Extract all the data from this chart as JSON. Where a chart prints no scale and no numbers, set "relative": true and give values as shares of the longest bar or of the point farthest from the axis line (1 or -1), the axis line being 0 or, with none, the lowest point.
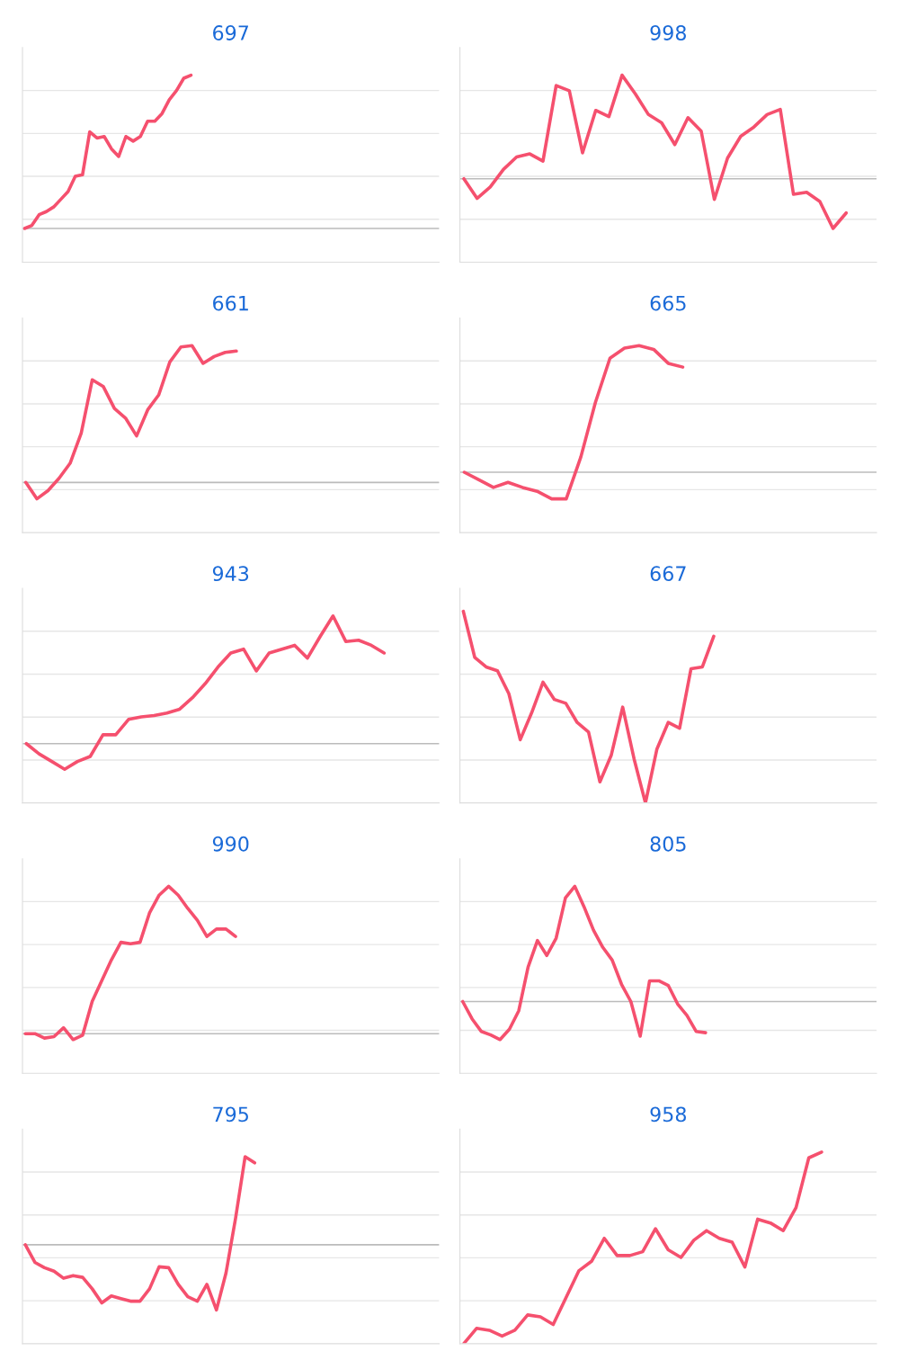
{
  "chart_data": [
    {
      "type": "line",
      "title": "697",
      "relative": true,
      "grid": "y",
      "tick_labels": false,
      "ref_lines": [
        {
          "axis": "y",
          "value": 0,
          "color": "#bbbbbb"
        }
      ],
      "categories": [
        null,
        null,
        null,
        null,
        null,
        null,
        null,
        null,
        null,
        null,
        null,
        null,
        null,
        null,
        null,
        null,
        null,
        null,
        null,
        null,
        null,
        null,
        null,
        null,
        null,
        null,
        null,
        null,
        null,
        null,
        null,
        null,
        null,
        null,
        null,
        null,
        null,
        null,
        null,
        null,
        null,
        null,
        null,
        null,
        null,
        null,
        null,
        null,
        null,
        null,
        null,
        null,
        null,
        null,
        null,
        null,
        null,
        null
      ],
      "series": [
        {
          "color": "#f5506e",
          "values": [
            0,
            0.02,
            0.09,
            0.11,
            0.14,
            0.19,
            0.24,
            0.34,
            0.35,
            0.63,
            0.59,
            0.6,
            0.52,
            0.47,
            0.6,
            0.57,
            0.6,
            0.7,
            0.7,
            0.75,
            0.84,
            0.9,
            0.98,
            1,
            null,
            null,
            null,
            null,
            null,
            null,
            null,
            null,
            null,
            null,
            null,
            null,
            null,
            null,
            null,
            null,
            null,
            null,
            null,
            null,
            null,
            null,
            null,
            null,
            null,
            null,
            null,
            null,
            null,
            null,
            null,
            null,
            null,
            null
          ]
        }
      ]
    },
    {
      "type": "line",
      "title": "998",
      "relative": true,
      "grid": "y",
      "tick_labels": false,
      "ref_lines": [
        {
          "axis": "y",
          "value": 0,
          "color": "#bbbbbb"
        }
      ],
      "categories": [
        null,
        null,
        null,
        null,
        null,
        null,
        null,
        null,
        null,
        null,
        null,
        null,
        null,
        null,
        null,
        null,
        null,
        null,
        null,
        null,
        null,
        null,
        null,
        null,
        null,
        null,
        null,
        null,
        null,
        null,
        null,
        null
      ],
      "series": [
        {
          "color": "#f5506e",
          "values": [
            0,
            -0.19,
            -0.08,
            0.09,
            0.21,
            0.24,
            0.17,
            0.9,
            0.85,
            0.25,
            0.66,
            0.6,
            1,
            0.82,
            0.62,
            0.54,
            0.33,
            0.59,
            0.46,
            -0.2,
            0.2,
            0.41,
            0.5,
            0.62,
            0.67,
            -0.15,
            -0.13,
            -0.22,
            -0.48,
            -0.33,
            null,
            null
          ]
        }
      ]
    },
    {
      "type": "line",
      "title": "661",
      "relative": true,
      "grid": "y",
      "tick_labels": false,
      "ref_lines": [
        {
          "axis": "y",
          "value": 0,
          "color": "#bbbbbb"
        }
      ],
      "categories": [
        null,
        null,
        null,
        null,
        null,
        null,
        null,
        null,
        null,
        null,
        null,
        null,
        null,
        null,
        null,
        null,
        null,
        null,
        null,
        null,
        null,
        null,
        null,
        null,
        null,
        null,
        null,
        null,
        null,
        null,
        null,
        null,
        null,
        null,
        null,
        null,
        null,
        null
      ],
      "series": [
        {
          "color": "#f5506e",
          "values": [
            0,
            -0.12,
            -0.06,
            0.03,
            0.14,
            0.36,
            0.75,
            0.7,
            0.54,
            0.47,
            0.34,
            0.53,
            0.64,
            0.88,
            0.99,
            1,
            0.87,
            0.92,
            0.95,
            0.96,
            null,
            null,
            null,
            null,
            null,
            null,
            null,
            null,
            null,
            null,
            null,
            null,
            null,
            null,
            null,
            null,
            null,
            null
          ]
        }
      ]
    },
    {
      "type": "line",
      "title": "665",
      "relative": true,
      "grid": "y",
      "tick_labels": false,
      "ref_lines": [
        {
          "axis": "y",
          "value": 0,
          "color": "#bbbbbb"
        }
      ],
      "categories": [
        null,
        null,
        null,
        null,
        null,
        null,
        null,
        null,
        null,
        null,
        null,
        null,
        null,
        null,
        null,
        null,
        null,
        null,
        null,
        null,
        null,
        null,
        null,
        null,
        null,
        null,
        null,
        null,
        null
      ],
      "series": [
        {
          "color": "#f5506e",
          "values": [
            0,
            -0.06,
            -0.12,
            -0.08,
            -0.12,
            -0.15,
            -0.21,
            -0.21,
            0.12,
            0.55,
            0.9,
            0.98,
            1,
            0.97,
            0.86,
            0.83,
            null,
            null,
            null,
            null,
            null,
            null,
            null,
            null,
            null,
            null,
            null,
            null,
            null
          ]
        }
      ]
    },
    {
      "type": "line",
      "title": "943",
      "relative": true,
      "grid": "y",
      "tick_labels": false,
      "ref_lines": [
        {
          "axis": "y",
          "value": 0,
          "color": "#bbbbbb"
        }
      ],
      "categories": [
        null,
        null,
        null,
        null,
        null,
        null,
        null,
        null,
        null,
        null,
        null,
        null,
        null,
        null,
        null,
        null,
        null,
        null,
        null,
        null,
        null,
        null,
        null,
        null,
        null,
        null,
        null,
        null,
        null,
        null,
        null,
        null,
        null
      ],
      "series": [
        {
          "color": "#f5506e",
          "values": [
            0,
            -0.08,
            -0.14,
            -0.2,
            -0.14,
            -0.1,
            0.07,
            0.07,
            0.19,
            0.21,
            0.22,
            0.24,
            0.27,
            0.36,
            0.47,
            0.6,
            0.71,
            0.74,
            0.57,
            0.71,
            0.74,
            0.77,
            0.67,
            0.84,
            1,
            0.8,
            0.81,
            0.77,
            0.71,
            null,
            null,
            null,
            null
          ]
        }
      ]
    },
    {
      "type": "line",
      "title": "667",
      "relative": true,
      "grid": "y",
      "tick_labels": false,
      "categories": [
        null,
        null,
        null,
        null,
        null,
        null,
        null,
        null,
        null,
        null,
        null,
        null,
        null,
        null,
        null,
        null,
        null,
        null,
        null,
        null,
        null,
        null,
        null,
        null,
        null,
        null,
        null,
        null,
        null,
        null,
        null,
        null,
        null,
        null,
        null,
        null,
        null
      ],
      "series": [
        {
          "color": "#f5506e",
          "values": [
            1,
            0.76,
            0.71,
            0.69,
            0.57,
            0.33,
            0.47,
            0.63,
            0.54,
            0.52,
            0.42,
            0.37,
            0.11,
            0.25,
            0.5,
            0.23,
            0,
            0.28,
            0.42,
            0.39,
            0.7,
            0.71,
            0.87,
            null,
            null,
            null,
            null,
            null,
            null,
            null,
            null,
            null,
            null,
            null,
            null,
            null,
            null
          ]
        }
      ]
    },
    {
      "type": "line",
      "title": "990",
      "relative": true,
      "grid": "y",
      "tick_labels": false,
      "ref_lines": [
        {
          "axis": "y",
          "value": 0,
          "color": "#bbbbbb"
        }
      ],
      "categories": [
        null,
        null,
        null,
        null,
        null,
        null,
        null,
        null,
        null,
        null,
        null,
        null,
        null,
        null,
        null,
        null,
        null,
        null,
        null,
        null,
        null,
        null,
        null,
        null,
        null,
        null,
        null,
        null,
        null,
        null,
        null,
        null,
        null,
        null,
        null,
        null,
        null,
        null,
        null,
        null,
        null,
        null,
        null,
        null
      ],
      "series": [
        {
          "color": "#f5506e",
          "values": [
            0,
            0,
            -0.03,
            -0.02,
            0.04,
            -0.04,
            -0.01,
            0.22,
            0.36,
            0.5,
            0.62,
            0.61,
            0.62,
            0.82,
            0.94,
            1,
            0.94,
            0.85,
            0.77,
            0.66,
            0.71,
            0.71,
            0.66,
            null,
            null,
            null,
            null,
            null,
            null,
            null,
            null,
            null,
            null,
            null,
            null,
            null,
            null,
            null,
            null,
            null,
            null,
            null,
            null,
            null
          ]
        }
      ]
    },
    {
      "type": "line",
      "title": "805",
      "relative": true,
      "grid": "y",
      "tick_labels": false,
      "ref_lines": [
        {
          "axis": "y",
          "value": 0,
          "color": "#bbbbbb"
        }
      ],
      "categories": [
        null,
        null,
        null,
        null,
        null,
        null,
        null,
        null,
        null,
        null,
        null,
        null,
        null,
        null,
        null,
        null,
        null,
        null,
        null,
        null,
        null,
        null,
        null,
        null,
        null,
        null,
        null,
        null,
        null,
        null,
        null,
        null,
        null,
        null,
        null,
        null,
        null,
        null,
        null,
        null,
        null,
        null,
        null,
        null,
        null
      ],
      "series": [
        {
          "color": "#f5506e",
          "values": [
            0,
            -0.15,
            -0.26,
            -0.29,
            -0.33,
            -0.24,
            -0.08,
            0.3,
            0.53,
            0.4,
            0.55,
            0.9,
            1,
            0.82,
            0.62,
            0.47,
            0.36,
            0.15,
            0,
            -0.3,
            0.18,
            0.18,
            0.14,
            -0.02,
            -0.12,
            -0.26,
            -0.27,
            null,
            null,
            null,
            null,
            null,
            null,
            null,
            null,
            null,
            null,
            null,
            null,
            null,
            null,
            null,
            null,
            null,
            null
          ]
        }
      ]
    },
    {
      "type": "line",
      "title": "795",
      "relative": true,
      "grid": "y",
      "tick_labels": false,
      "ref_lines": [
        {
          "axis": "y",
          "value": 0,
          "color": "#bbbbbb"
        }
      ],
      "categories": [
        null,
        null,
        null,
        null,
        null,
        null,
        null,
        null,
        null,
        null,
        null,
        null,
        null,
        null,
        null,
        null,
        null,
        null,
        null,
        null,
        null,
        null,
        null,
        null,
        null,
        null,
        null,
        null,
        null,
        null,
        null,
        null,
        null,
        null,
        null,
        null,
        null,
        null,
        null,
        null,
        null,
        null,
        null,
        null
      ],
      "series": [
        {
          "color": "#f5506e",
          "values": [
            0,
            -0.2,
            -0.26,
            -0.3,
            -0.38,
            -0.35,
            -0.37,
            -0.5,
            -0.66,
            -0.58,
            -0.61,
            -0.64,
            -0.64,
            -0.5,
            -0.25,
            -0.26,
            -0.45,
            -0.59,
            -0.64,
            -0.45,
            -0.74,
            -0.32,
            0.3,
            1,
            0.93,
            null,
            null,
            null,
            null,
            null,
            null,
            null,
            null,
            null,
            null,
            null,
            null,
            null,
            null,
            null,
            null,
            null,
            null,
            null
          ]
        }
      ]
    },
    {
      "type": "line",
      "title": "958",
      "relative": true,
      "grid": "y",
      "tick_labels": false,
      "categories": [
        null,
        null,
        null,
        null,
        null,
        null,
        null,
        null,
        null,
        null,
        null,
        null,
        null,
        null,
        null,
        null,
        null,
        null,
        null,
        null,
        null,
        null,
        null,
        null,
        null,
        null,
        null,
        null,
        null,
        null,
        null,
        null,
        null
      ],
      "series": [
        {
          "color": "#f5506e",
          "values": [
            0,
            0.08,
            0.07,
            0.04,
            0.07,
            0.15,
            0.14,
            0.1,
            0.24,
            0.38,
            0.43,
            0.55,
            0.46,
            0.46,
            0.48,
            0.6,
            0.49,
            0.45,
            0.54,
            0.59,
            0.55,
            0.53,
            0.4,
            0.65,
            0.63,
            0.59,
            0.71,
            0.97,
            1,
            null,
            null,
            null,
            null
          ]
        }
      ]
    }
  ]
}
